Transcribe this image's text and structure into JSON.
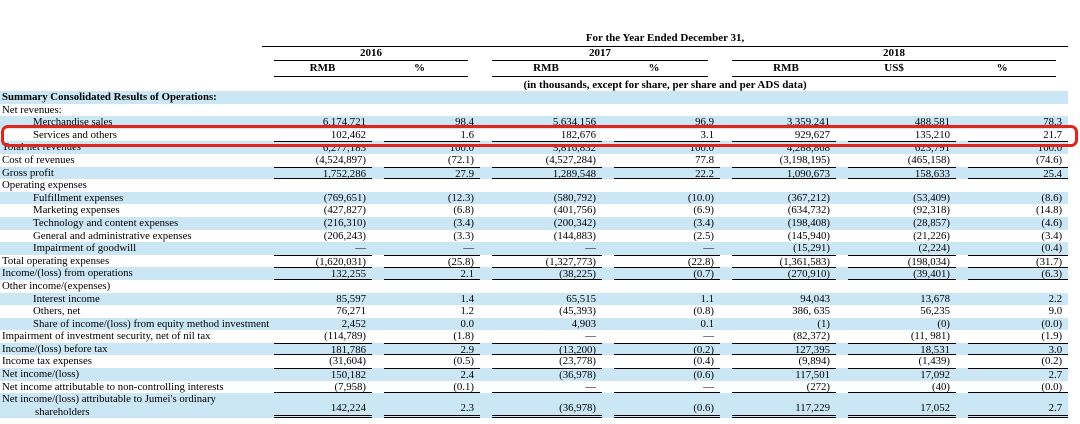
{
  "table": {
    "header": {
      "title": "For the Year Ended December 31,",
      "subtitle": "(in thousands, except for share, per share and per ADS data)",
      "groups": [
        {
          "year": "2016",
          "units": [
            "RMB",
            "%"
          ]
        },
        {
          "year": "2017",
          "units": [
            "RMB",
            "%"
          ]
        },
        {
          "year": "2018",
          "units": [
            "RMB",
            "US$",
            "%"
          ]
        }
      ]
    },
    "rows": [
      {
        "label": "Summary Consolidated Results of Operations:",
        "bold": true,
        "indent": false,
        "values": []
      },
      {
        "label": "Net revenues:",
        "indent": false,
        "values": []
      },
      {
        "label": "Merchandise sales",
        "indent": true,
        "values": [
          "6,174,721",
          "98.4",
          "5,634,156",
          "96.9",
          "3,359,241",
          "488,581",
          "78.3"
        ]
      },
      {
        "label": "Services and others",
        "indent": true,
        "highlight": true,
        "values": [
          "102,462",
          "1.6",
          "182,676",
          "3.1",
          "929,627",
          "135,210",
          "21.7"
        ]
      },
      {
        "label": "Total net revenues",
        "indent": false,
        "border": "t",
        "values": [
          "6,277,183",
          "100.0",
          "5,816,832",
          "100.0",
          "4,288,868",
          "623,791",
          "100.0"
        ]
      },
      {
        "label": "Cost of revenues",
        "indent": false,
        "values": [
          "(4,524,897)",
          "(72.1)",
          "(4,527,284)",
          "77.8",
          "(3,198,195)",
          "(465,158)",
          "(74.6)"
        ]
      },
      {
        "label": "Gross profit",
        "indent": false,
        "border": "tb",
        "values": [
          "1,752,286",
          "27.9",
          "1,289,548",
          "22.2",
          "1,090,673",
          "158,633",
          "25.4"
        ]
      },
      {
        "label": "Operating expenses",
        "indent": false,
        "values": []
      },
      {
        "label": "Fulfillment expenses",
        "indent": true,
        "values": [
          "(769,651)",
          "(12.3)",
          "(580,792)",
          "(10.0)",
          "(367,212)",
          "(53,409)",
          "(8.6)"
        ]
      },
      {
        "label": "Marketing expenses",
        "indent": true,
        "values": [
          "(427,827)",
          "(6.8)",
          "(401,756)",
          "(6.9)",
          "(634,732)",
          "(92,318)",
          "(14.8)"
        ]
      },
      {
        "label": "Technology and content expenses",
        "indent": true,
        "values": [
          "(216,310)",
          "(3.4)",
          "(200,342)",
          "(3.4)",
          "(198,408)",
          "(28,857)",
          "(4.6)"
        ]
      },
      {
        "label": "General and administrative expenses",
        "indent": true,
        "values": [
          "(206,243)",
          "(3.3)",
          "(144,883)",
          "(2.5)",
          "(145,940)",
          "(21,226)",
          "(3.4)"
        ]
      },
      {
        "label": "Impairment of goodwill",
        "indent": true,
        "values": [
          "—",
          "—",
          "—",
          "—",
          "(15,291)",
          "(2,224)",
          "(0.4)"
        ]
      },
      {
        "label": "Total operating expenses",
        "indent": false,
        "border": "t",
        "values": [
          "(1,620,031)",
          "(25.8)",
          "(1,327,773)",
          "(22.8)",
          "(1,361,583)",
          "(198,034)",
          "(31.7)"
        ]
      },
      {
        "label": "Income/(loss) from operations",
        "indent": false,
        "border": "tb",
        "values": [
          "132,255",
          "2.1",
          "(38,225)",
          "(0.7)",
          "(270,910)",
          "(39,401)",
          "(6.3)"
        ]
      },
      {
        "label": "Other income/(expenses)",
        "indent": false,
        "values": []
      },
      {
        "label": "Interest income",
        "indent": true,
        "values": [
          "85,597",
          "1.4",
          "65,515",
          "1.1",
          "94,043",
          "13,678",
          "2.2"
        ]
      },
      {
        "label": "Others, net",
        "indent": true,
        "values": [
          "76,271",
          "1.2",
          "(45,393)",
          "(0.8)",
          "386, 635",
          "56,235",
          "9.0"
        ]
      },
      {
        "label": "Share of income/(loss) from equity method investment",
        "indent": true,
        "values": [
          "2,452",
          "0.0",
          "4,903",
          "0.1",
          "(1)",
          "(0)",
          "(0.0)"
        ]
      },
      {
        "label": "Impairment of investment security, net of nil tax",
        "indent": false,
        "values": [
          "(114,789)",
          "(1.8)",
          "—",
          "—",
          "(82,372)",
          "(11, 981)",
          "(1.9)"
        ]
      },
      {
        "label": "Income/(loss) before tax",
        "indent": false,
        "border": "tb",
        "values": [
          "181,786",
          "2.9",
          "(13,200)",
          "(0.2)",
          "127,395",
          "18,531",
          "3.0"
        ]
      },
      {
        "label": "Income tax expenses",
        "indent": false,
        "values": [
          "(31,604)",
          "(0.5)",
          "(23,778)",
          "(0.4)",
          "(9,894)",
          "(1,439)",
          "(0.2)"
        ]
      },
      {
        "label": "Net income/(loss)",
        "indent": false,
        "border": "t",
        "values": [
          "150,182",
          "2.4",
          "(36,978)",
          "(0.6)",
          "117,501",
          "17,092",
          "2.7"
        ]
      },
      {
        "label": "Net income attributable to non-controlling interests",
        "indent": false,
        "border": "b",
        "values": [
          "(7,958)",
          "(0.1)",
          "—",
          "—",
          "(272)",
          "(40)",
          "(0.0)"
        ]
      },
      {
        "label": "Net income/(loss) attributable to Jumei's ordinary",
        "label2": "shareholders",
        "indent": false,
        "border": "dbl",
        "values": [
          "142,224",
          "2.3",
          "(36,978)",
          "(0.6)",
          "117,229",
          "17,052",
          "2.7"
        ]
      }
    ]
  },
  "highlight": {
    "row": "Services and others",
    "color": "#e0261c"
  },
  "colors": {
    "row_shade": "#cbe7f6",
    "rule": "#000000",
    "highlight": "#e0261c"
  }
}
